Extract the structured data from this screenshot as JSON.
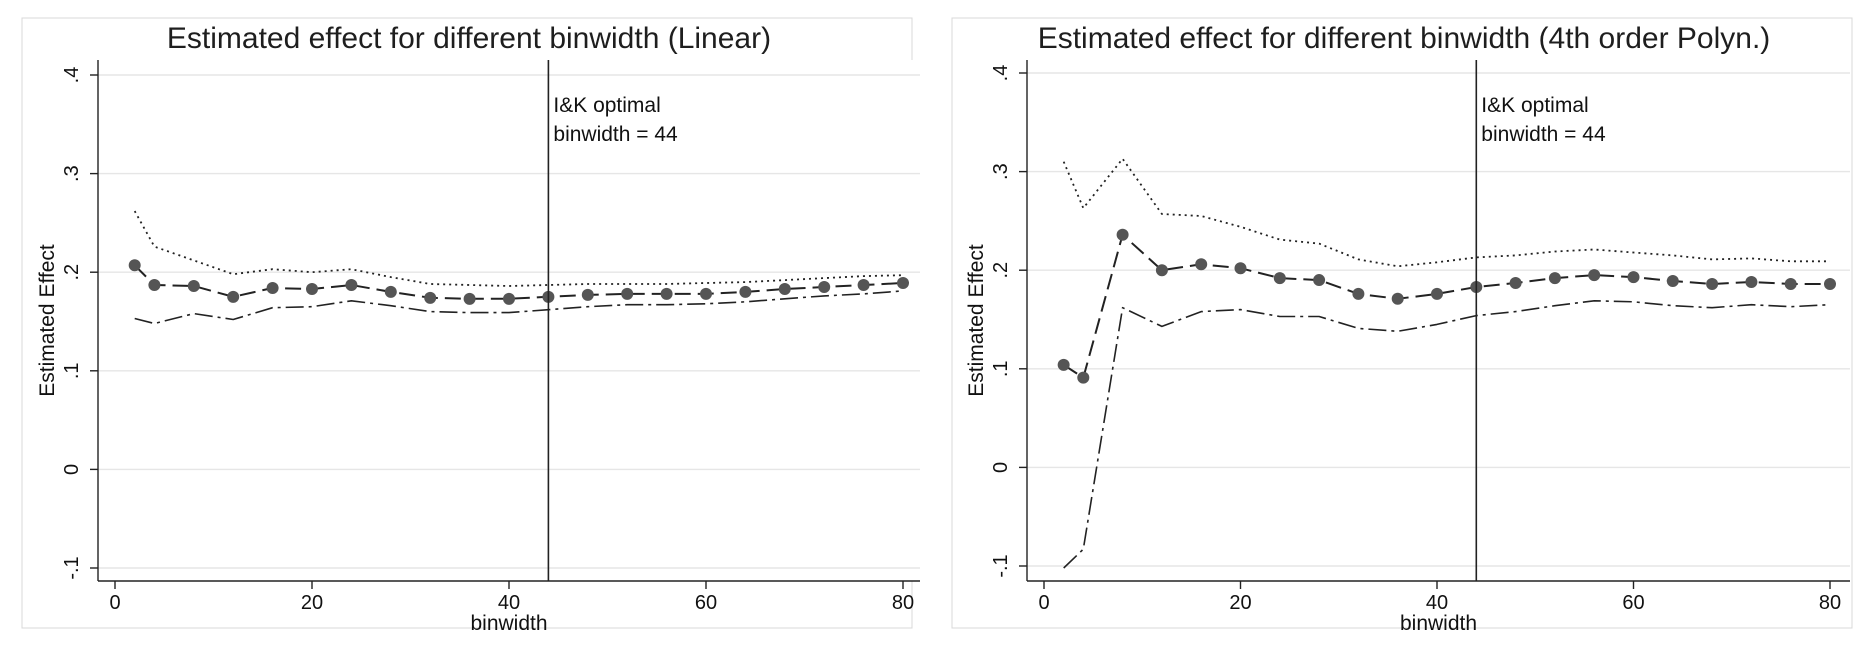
{
  "colors": {
    "background": "#ffffff",
    "plot_bg": "#ffffff",
    "grid": "#e6e6e6",
    "line": "#222222",
    "marker": "#555555",
    "panel_border": "#d8d8d8"
  },
  "chart_data": [
    {
      "type": "line",
      "title": "Estimated effect for different binwidth (Linear)",
      "xlabel": "binwidth",
      "ylabel": "Estimated Effect",
      "xlim": [
        0,
        80
      ],
      "ylim": [
        -0.1,
        0.4
      ],
      "xticks": [
        0,
        20,
        40,
        60,
        80
      ],
      "yticks": [
        -0.1,
        0,
        0.1,
        0.2,
        0.3,
        0.4
      ],
      "ytick_labels": [
        "-.1",
        "0",
        ".1",
        ".2",
        ".3",
        ".4"
      ],
      "grid": true,
      "legend": "none",
      "vline": {
        "x": 44,
        "label_line1": "I&K optimal",
        "label_line2": "binwidth = 44"
      },
      "x": [
        2,
        4,
        8,
        12,
        16,
        20,
        24,
        28,
        32,
        36,
        40,
        44,
        48,
        52,
        56,
        60,
        64,
        68,
        72,
        76,
        80
      ],
      "series": [
        {
          "role": "estimate",
          "style": "dashed-markers",
          "values": [
            0.207,
            0.187,
            0.186,
            0.175,
            0.184,
            0.183,
            0.187,
            0.18,
            0.174,
            0.173,
            0.173,
            0.175,
            0.177,
            0.178,
            0.178,
            0.178,
            0.18,
            0.183,
            0.185,
            0.187,
            0.189
          ]
        },
        {
          "role": "upper",
          "style": "dotted",
          "values": [
            0.262,
            0.226,
            0.212,
            0.198,
            0.203,
            0.2,
            0.203,
            0.195,
            0.188,
            0.187,
            0.186,
            0.187,
            0.188,
            0.188,
            0.188,
            0.189,
            0.19,
            0.192,
            0.194,
            0.196,
            0.197
          ]
        },
        {
          "role": "lower",
          "style": "dash-dot",
          "values": [
            0.153,
            0.148,
            0.158,
            0.152,
            0.164,
            0.165,
            0.171,
            0.166,
            0.16,
            0.159,
            0.159,
            0.162,
            0.165,
            0.167,
            0.167,
            0.168,
            0.17,
            0.173,
            0.176,
            0.178,
            0.181
          ]
        }
      ]
    },
    {
      "type": "line",
      "title": "Estimated effect for different binwidth (4th order Polyn.)",
      "xlabel": "binwidth",
      "ylabel": "Estimated Effect",
      "xlim": [
        0,
        80
      ],
      "ylim": [
        -0.1,
        0.4
      ],
      "xticks": [
        0,
        20,
        40,
        60,
        80
      ],
      "yticks": [
        -0.1,
        0,
        0.1,
        0.2,
        0.3,
        0.4
      ],
      "ytick_labels": [
        "-.1",
        "0",
        ".1",
        ".2",
        ".3",
        ".4"
      ],
      "grid": true,
      "legend": "none",
      "vline": {
        "x": 44,
        "label_line1": "I&K optimal",
        "label_line2": "binwidth = 44"
      },
      "x": [
        2,
        4,
        8,
        12,
        16,
        20,
        24,
        28,
        32,
        36,
        40,
        44,
        48,
        52,
        56,
        60,
        64,
        68,
        72,
        76,
        80
      ],
      "series": [
        {
          "role": "estimate",
          "style": "dashed-markers",
          "values": [
            0.104,
            0.091,
            0.236,
            0.2,
            0.206,
            0.202,
            0.192,
            0.19,
            0.176,
            0.171,
            0.176,
            0.183,
            0.187,
            0.192,
            0.195,
            0.193,
            0.189,
            0.186,
            0.188,
            0.186,
            0.186
          ]
        },
        {
          "role": "upper",
          "style": "dotted",
          "values": [
            0.31,
            0.263,
            0.313,
            0.257,
            0.255,
            0.244,
            0.231,
            0.227,
            0.211,
            0.204,
            0.208,
            0.213,
            0.215,
            0.219,
            0.221,
            0.218,
            0.215,
            0.211,
            0.212,
            0.209,
            0.209
          ]
        },
        {
          "role": "lower",
          "style": "dash-dot",
          "values": [
            -0.102,
            -0.083,
            0.162,
            0.143,
            0.158,
            0.16,
            0.153,
            0.153,
            0.141,
            0.138,
            0.145,
            0.154,
            0.158,
            0.164,
            0.169,
            0.168,
            0.164,
            0.162,
            0.165,
            0.163,
            0.165
          ]
        }
      ]
    }
  ]
}
